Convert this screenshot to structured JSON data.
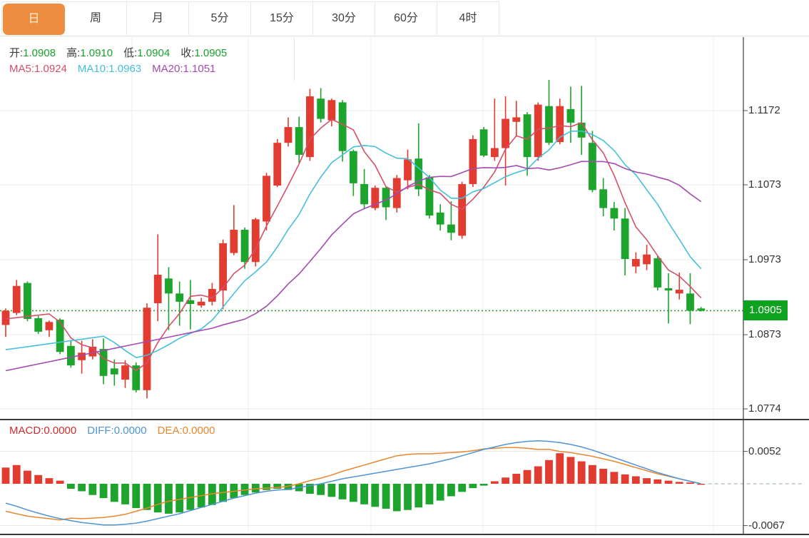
{
  "tabbar": {
    "items": [
      {
        "label": "日",
        "selected": true
      },
      {
        "label": "周",
        "selected": false
      },
      {
        "label": "月",
        "selected": false
      },
      {
        "label": "5分",
        "selected": false
      },
      {
        "label": "15分",
        "selected": false
      },
      {
        "label": "30分",
        "selected": false
      },
      {
        "label": "60分",
        "selected": false
      },
      {
        "label": "4时",
        "selected": false
      }
    ]
  },
  "ohlc_legend": {
    "items": [
      {
        "label": "开:",
        "value": "1.0908"
      },
      {
        "label": "高:",
        "value": "1.0910"
      },
      {
        "label": "低:",
        "value": "1.0904"
      },
      {
        "label": "收:",
        "value": "1.0905"
      }
    ]
  },
  "ma_legend": {
    "items": [
      {
        "label": "MA5:",
        "value": "1.0924",
        "color": "#d44f6a"
      },
      {
        "label": "MA10:",
        "value": "1.0963",
        "color": "#45c0da"
      },
      {
        "label": "MA20:",
        "value": "1.1051",
        "color": "#a44ab0"
      }
    ]
  },
  "main_axis": {
    "ticks": [
      "1.1172",
      "1.1073",
      "1.0973",
      "1.0873",
      "1.0774"
    ],
    "current_price_badge": "1.0905"
  },
  "macd": {
    "legend": [
      {
        "label": "MACD:",
        "value": "0.0000",
        "color": "#ce2c2c"
      },
      {
        "label": "DIFF:",
        "value": "0.0000",
        "color": "#4f94d4"
      },
      {
        "label": "DEA:",
        "value": "0.0000",
        "color": "#e8872c"
      }
    ],
    "ticks": [
      "0.0052",
      "-0.0067"
    ]
  },
  "colors": {
    "up_candle": "#e23b30",
    "down_candle": "#1ca42c",
    "ohlc_value_green": "#1aa12b",
    "ma5": "#d44f6a",
    "ma10": "#45c0da",
    "ma20": "#a44ab0",
    "diff_line": "#4f94d4",
    "dea_line": "#e8872c",
    "dotted_price_line": "#2ca02c",
    "badge_bg": "#0ea21f",
    "tab_selected_bg": "#ee8c40",
    "tab_selected_text": "#fdf3d4",
    "grid_h": "#e8e8e8",
    "grid_v": "#ececec",
    "axis_line": "#555555",
    "panel_border": "#3a3a3a",
    "dashed_zero_ext": "#a9bfa9"
  },
  "chart_data": [
    {
      "type": "candlestick",
      "timeframe": "日",
      "up_color_rule": "red = close >= open, green = close < open",
      "y_ticks": [
        1.1172,
        1.1073,
        1.0973,
        1.0873,
        1.0774
      ],
      "current_price": 1.0905,
      "last_bar": {
        "open": 1.0908,
        "high": 1.091,
        "low": 1.0904,
        "close": 1.0905
      },
      "overlays": [
        {
          "name": "MA5",
          "period": 5,
          "last_value": 1.0924,
          "start_value": 1.0894
        },
        {
          "name": "MA10",
          "period": 10,
          "last_value": 1.0963,
          "start_value": 1.0853
        },
        {
          "name": "MA20",
          "period": 20,
          "last_value": 1.1051,
          "start_value": 1.0825
        }
      ],
      "ohlc": [
        [
          1.0886,
          1.0908,
          1.087,
          1.0905
        ],
        [
          1.0902,
          1.0946,
          1.0899,
          1.0938
        ],
        [
          1.0942,
          1.0944,
          1.0891,
          1.0894
        ],
        [
          1.0895,
          1.0898,
          1.0874,
          1.0877
        ],
        [
          1.0879,
          1.0892,
          1.087,
          1.089
        ],
        [
          1.0893,
          1.0895,
          1.0847,
          1.085
        ],
        [
          1.0858,
          1.0866,
          1.0829,
          1.0832
        ],
        [
          1.0839,
          1.0865,
          1.0821,
          1.0849
        ],
        [
          1.0844,
          1.0867,
          1.084,
          1.0857
        ],
        [
          1.0854,
          1.0868,
          1.0807,
          1.0818
        ],
        [
          1.0828,
          1.084,
          1.0805,
          1.082
        ],
        [
          1.0813,
          1.0839,
          1.0802,
          1.0832
        ],
        [
          1.0832,
          1.0836,
          1.0796,
          1.0799
        ],
        [
          1.0799,
          1.0915,
          1.0788,
          1.0909
        ],
        [
          1.0915,
          1.1007,
          1.0891,
          1.0953
        ],
        [
          1.0948,
          1.0963,
          1.0879,
          1.0928
        ],
        [
          1.0928,
          1.0944,
          1.0885,
          1.0917
        ],
        [
          1.0919,
          1.0946,
          1.088,
          1.0914
        ],
        [
          1.0912,
          1.0922,
          1.0909,
          1.0917
        ],
        [
          1.0917,
          1.0942,
          1.0912,
          1.0934
        ],
        [
          1.0932,
          1.1,
          1.0907,
          1.0995
        ],
        [
          1.0982,
          1.1046,
          1.0979,
          1.1013
        ],
        [
          1.1013,
          1.1016,
          1.0961,
          1.097
        ],
        [
          1.097,
          1.1029,
          1.0964,
          1.1027
        ],
        [
          1.1024,
          1.1089,
          1.1012,
          1.1085
        ],
        [
          1.1072,
          1.1134,
          1.107,
          1.1129
        ],
        [
          1.1129,
          1.1163,
          1.1124,
          1.115
        ],
        [
          1.115,
          1.1164,
          1.1102,
          1.1113
        ],
        [
          1.111,
          1.1201,
          1.1105,
          1.1191
        ],
        [
          1.1188,
          1.1202,
          1.1156,
          1.1161
        ],
        [
          1.1159,
          1.1188,
          1.1151,
          1.1186
        ],
        [
          1.1183,
          1.1186,
          1.1104,
          1.1118
        ],
        [
          1.1118,
          1.112,
          1.1058,
          1.1075
        ],
        [
          1.1074,
          1.1094,
          1.1042,
          1.1047
        ],
        [
          1.1042,
          1.1072,
          1.1039,
          1.1069
        ],
        [
          1.1069,
          1.1071,
          1.1026,
          1.1043
        ],
        [
          1.1042,
          1.1086,
          1.1036,
          1.1082
        ],
        [
          1.1079,
          1.112,
          1.1067,
          1.1107
        ],
        [
          1.1108,
          1.1155,
          1.1058,
          1.1067
        ],
        [
          1.1083,
          1.1086,
          1.1028,
          1.1032
        ],
        [
          1.1036,
          1.1047,
          1.1012,
          1.102
        ],
        [
          1.102,
          1.1051,
          1.0999,
          1.1009
        ],
        [
          1.1005,
          1.1077,
          1.1001,
          1.1074
        ],
        [
          1.1074,
          1.1139,
          1.107,
          1.1134
        ],
        [
          1.1147,
          1.115,
          1.111,
          1.1112
        ],
        [
          1.111,
          1.1188,
          1.1105,
          1.1122
        ],
        [
          1.1122,
          1.1191,
          1.1072,
          1.1161
        ],
        [
          1.1157,
          1.1185,
          1.1137,
          1.1163
        ],
        [
          1.1167,
          1.117,
          1.1085,
          1.111
        ],
        [
          1.111,
          1.1183,
          1.1105,
          1.118
        ],
        [
          1.1178,
          1.1213,
          1.1126,
          1.1129
        ],
        [
          1.113,
          1.1188,
          1.1127,
          1.1178
        ],
        [
          1.1174,
          1.1204,
          1.1129,
          1.1156
        ],
        [
          1.1156,
          1.1205,
          1.1113,
          1.1136
        ],
        [
          1.1129,
          1.1145,
          1.1063,
          1.1066
        ],
        [
          1.1067,
          1.1082,
          1.1031,
          1.1042
        ],
        [
          1.1042,
          1.105,
          1.1012,
          1.1028
        ],
        [
          1.1028,
          1.1042,
          1.0952,
          1.0974
        ],
        [
          1.0964,
          1.0983,
          1.0955,
          1.0974
        ],
        [
          1.0967,
          1.0993,
          1.0959,
          1.098
        ],
        [
          1.0975,
          1.0978,
          1.0932,
          1.0936
        ],
        [
          1.0935,
          1.0955,
          1.0888,
          1.0932
        ],
        [
          1.0928,
          1.0956,
          1.092,
          1.0933
        ],
        [
          1.0928,
          1.0955,
          1.0887,
          1.0905
        ],
        [
          1.0908,
          1.091,
          1.0904,
          1.0905
        ]
      ]
    },
    {
      "type": "bar",
      "name": "MACD",
      "y_ticks": [
        0.0052,
        -0.0067
      ],
      "last_values": {
        "macd": 0.0,
        "diff": 0.0,
        "dea": 0.0
      },
      "bar_color_rule": "red = positive, green = negative",
      "histogram": [
        0.0026,
        0.003,
        0.0021,
        0.0014,
        0.0009,
        0.0005,
        -0.0008,
        -0.0012,
        -0.0018,
        -0.0023,
        -0.0029,
        -0.0033,
        -0.0039,
        -0.0042,
        -0.0046,
        -0.0048,
        -0.0046,
        -0.0042,
        -0.0038,
        -0.0034,
        -0.0029,
        -0.0023,
        -0.0018,
        -0.0014,
        -0.001,
        -0.0008,
        -0.001,
        -0.0012,
        -0.0016,
        -0.0018,
        -0.0021,
        -0.0025,
        -0.0029,
        -0.0033,
        -0.0037,
        -0.004,
        -0.0044,
        -0.0042,
        -0.0038,
        -0.0033,
        -0.0027,
        -0.002,
        -0.0013,
        -0.0007,
        -0.0003,
        0.0004,
        0.001,
        0.0016,
        0.0022,
        0.0028,
        0.0038,
        0.0049,
        0.0043,
        0.0036,
        0.003,
        0.0024,
        0.0019,
        0.0015,
        0.0012,
        0.0009,
        0.0007,
        0.0005,
        0.0003,
        0.0002,
        0.0
      ],
      "diff": [
        -0.0031,
        -0.0036,
        -0.0042,
        -0.0047,
        -0.0052,
        -0.0056,
        -0.0059,
        -0.0062,
        -0.0064,
        -0.0066,
        -0.0066,
        -0.0065,
        -0.0063,
        -0.006,
        -0.0056,
        -0.0052,
        -0.0048,
        -0.0043,
        -0.0038,
        -0.0033,
        -0.0028,
        -0.0023,
        -0.0019,
        -0.0015,
        -0.0012,
        -0.001,
        -0.0009,
        -0.0006,
        -0.0003,
        0.0,
        0.0004,
        0.0008,
        0.0011,
        0.0014,
        0.0017,
        0.002,
        0.0023,
        0.0026,
        0.0029,
        0.0032,
        0.0036,
        0.004,
        0.0045,
        0.005,
        0.0055,
        0.0059,
        0.0063,
        0.0066,
        0.0068,
        0.0069,
        0.0068,
        0.0066,
        0.0063,
        0.0059,
        0.0054,
        0.0048,
        0.0042,
        0.0036,
        0.003,
        0.0024,
        0.0018,
        0.0013,
        0.0008,
        0.0004,
        0.0
      ],
      "dea": [
        -0.0044,
        -0.0048,
        -0.0052,
        -0.0054,
        -0.0056,
        -0.0058,
        -0.0055,
        -0.0056,
        -0.0055,
        -0.0054,
        -0.0052,
        -0.0049,
        -0.0044,
        -0.0039,
        -0.0033,
        -0.0028,
        -0.0025,
        -0.0022,
        -0.0019,
        -0.0016,
        -0.0014,
        -0.0012,
        -0.001,
        -0.0008,
        -0.0007,
        -0.0006,
        -0.0004,
        0.0,
        0.0005,
        0.0009,
        0.0014,
        0.002,
        0.0025,
        0.003,
        0.0035,
        0.004,
        0.0045,
        0.0047,
        0.0048,
        0.0048,
        0.0049,
        0.005,
        0.0051,
        0.0053,
        0.0056,
        0.0057,
        0.0058,
        0.0058,
        0.0057,
        0.0055,
        0.0055,
        0.0052,
        0.005,
        0.0047,
        0.0044,
        0.004,
        0.0036,
        0.0031,
        0.0026,
        0.0021,
        0.0016,
        0.0012,
        0.0008,
        0.0004,
        0.0
      ]
    }
  ]
}
